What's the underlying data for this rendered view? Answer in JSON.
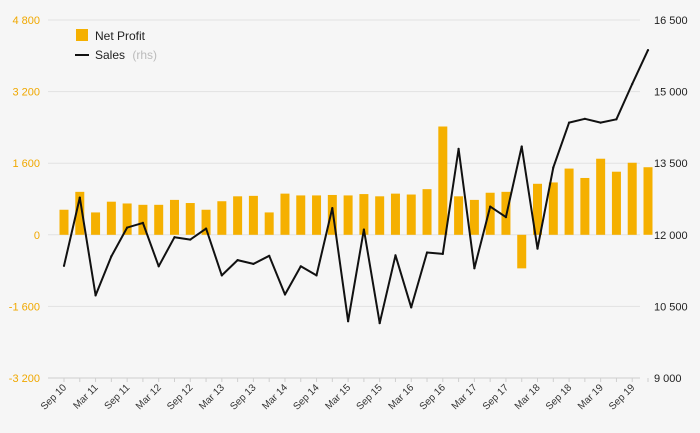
{
  "colors": {
    "background": "#f6f6f6",
    "bar": "#f5b000",
    "line": "#111111",
    "left_axis_text": "#f0a800",
    "right_axis_text": "#222222",
    "grid": "#e2e2e2"
  },
  "legend": {
    "net_profit_label": "Net Profit",
    "sales_label": "Sales",
    "sales_suffix": "(rhs)"
  },
  "chart_data": {
    "type": "bar",
    "combo": "bar + line (secondary axis)",
    "grid": true,
    "legend_position": "top-left",
    "categories": [
      "Sep 10",
      "Dec 10",
      "Mar 11",
      "Jun 11",
      "Sep 11",
      "Dec 11",
      "Mar 12",
      "Jun 12",
      "Sep 12",
      "Dec 12",
      "Mar 13",
      "Jun 13",
      "Sep 13",
      "Dec 13",
      "Mar 14",
      "Jun 14",
      "Sep 14",
      "Dec 14",
      "Mar 15",
      "Jun 15",
      "Sep 15",
      "Dec 15",
      "Mar 16",
      "Jun 16",
      "Sep 16",
      "Dec 16",
      "Mar 17",
      "Jun 17",
      "Sep 17",
      "Dec 17",
      "Mar 18",
      "Jun 18",
      "Sep 18",
      "Dec 18",
      "Mar 19",
      "Jun 19",
      "Sep 19",
      "Dec 19"
    ],
    "x_tick_labels": [
      "Sep 10",
      "Mar 11",
      "Sep 11",
      "Mar 12",
      "Sep 12",
      "Mar 13",
      "Sep 13",
      "Mar 14",
      "Sep 14",
      "Mar 15",
      "Sep 15",
      "Mar 16",
      "Sep 16",
      "Mar 17",
      "Sep 17",
      "Mar 18",
      "Sep 18",
      "Mar 19",
      "Sep 19"
    ],
    "y_left": {
      "ylim": [
        -3200,
        4800
      ],
      "ticks": [
        4800,
        3200,
        1600,
        0,
        -1600,
        -3200
      ],
      "tick_labels": [
        "4 800",
        "3 200",
        "1 600",
        "0",
        "-1 600",
        "-3 200"
      ]
    },
    "y_right": {
      "ylim": [
        9000,
        16500
      ],
      "ticks": [
        16500,
        15000,
        13500,
        12000,
        10500,
        9000
      ],
      "tick_labels": [
        "16 500",
        "15 000",
        "13 500",
        "12 000",
        "10 500",
        "9 000"
      ]
    },
    "series": [
      {
        "name": "Net Profit",
        "kind": "bar",
        "axis": "left",
        "values": [
          560,
          960,
          500,
          740,
          700,
          670,
          670,
          780,
          710,
          560,
          750,
          860,
          870,
          500,
          920,
          880,
          880,
          890,
          880,
          910,
          860,
          920,
          900,
          1020,
          2420,
          860,
          780,
          940,
          960,
          -750,
          1140,
          1170,
          1480,
          1270,
          1700,
          1410,
          1610,
          1510
        ]
      },
      {
        "name": "Sales",
        "kind": "line",
        "axis": "right",
        "values": [
          11350,
          12780,
          10730,
          11550,
          12150,
          12250,
          11340,
          11950,
          11900,
          12130,
          11150,
          11470,
          11390,
          11560,
          10750,
          11340,
          11150,
          12560,
          10190,
          12110,
          10150,
          11570,
          10480,
          11630,
          11600,
          13800,
          11300,
          12590,
          12370,
          13850,
          11710,
          13410,
          14350,
          14430,
          14350,
          14420,
          15160,
          15870
        ]
      }
    ]
  }
}
